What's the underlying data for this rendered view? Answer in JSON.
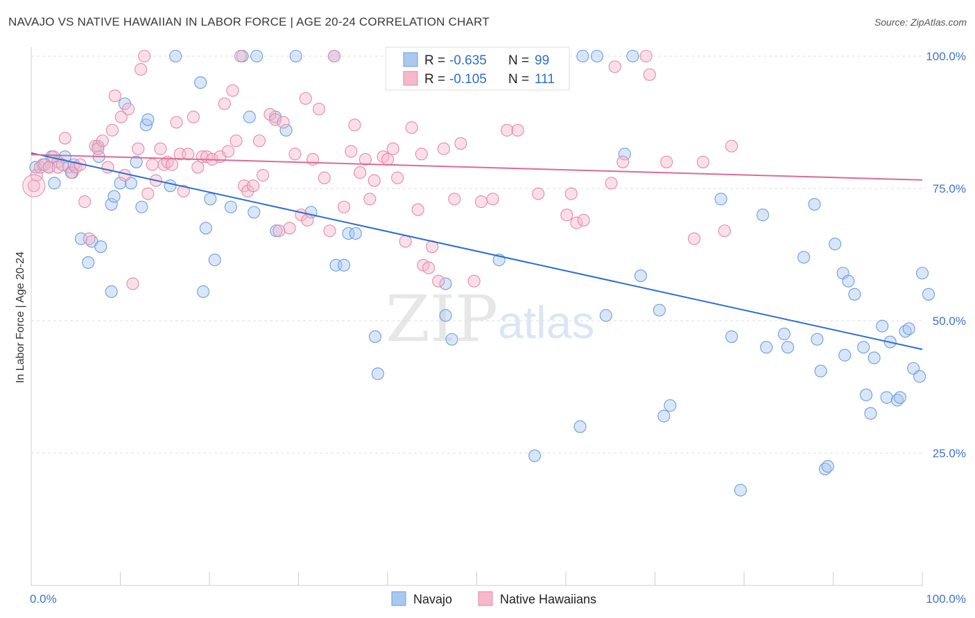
{
  "header": {
    "title": "NAVAJO VS NATIVE HAWAIIAN IN LABOR FORCE | AGE 20-24 CORRELATION CHART",
    "source": "Source: ZipAtlas.com"
  },
  "watermark": {
    "zip": "ZIP",
    "atlas": "atlas"
  },
  "legend": {
    "r_label": "R =",
    "n_label": "N =",
    "rows": [
      {
        "r": "-0.635",
        "n": "99",
        "color": "#a9c8f0"
      },
      {
        "r": "-0.105",
        "n": "111",
        "color": "#f6b8cb"
      }
    ]
  },
  "chart_data": {
    "type": "scatter",
    "title": "NAVAJO VS NATIVE HAWAIIAN IN LABOR FORCE | AGE 20-24 CORRELATION CHART",
    "xlabel": "",
    "ylabel": "In Labor Force | Age 20-24",
    "xlim": [
      0,
      100
    ],
    "ylim": [
      0,
      105
    ],
    "x_tick_labels": [
      "0.0%",
      "100.0%"
    ],
    "y_tick_labels": [
      "25.0%",
      "50.0%",
      "75.0%",
      "100.0%"
    ],
    "y_tick_values": [
      25,
      50,
      75,
      100
    ],
    "grid": true,
    "legend_position": "top-center",
    "series": [
      {
        "name": "Navajo",
        "color": "#a9c8f0",
        "stroke": "#6c9ee0",
        "trend": {
          "x": [
            0,
            100
          ],
          "y": [
            81.7,
            44.6
          ],
          "color": "#2a6dd4"
        },
        "points": [
          [
            0.5,
            79
          ],
          [
            1.3,
            79.5
          ],
          [
            2,
            79
          ],
          [
            2.3,
            81
          ],
          [
            2.6,
            76
          ],
          [
            3,
            80
          ],
          [
            3.8,
            81
          ],
          [
            4.2,
            79
          ],
          [
            4.6,
            78
          ],
          [
            4.8,
            79.5
          ],
          [
            5.6,
            65.5
          ],
          [
            6.4,
            61
          ],
          [
            6.8,
            65
          ],
          [
            7.5,
            83
          ],
          [
            7.6,
            81
          ],
          [
            7.8,
            64
          ],
          [
            9,
            55.5
          ],
          [
            9,
            72
          ],
          [
            9.3,
            73.5
          ],
          [
            10,
            76
          ],
          [
            10.5,
            91
          ],
          [
            11.2,
            76
          ],
          [
            11.8,
            80
          ],
          [
            12.4,
            71.5
          ],
          [
            12.9,
            87
          ],
          [
            13.1,
            88
          ],
          [
            15.6,
            75.5
          ],
          [
            16.2,
            100
          ],
          [
            19,
            95
          ],
          [
            19.3,
            55.5
          ],
          [
            19.6,
            67.5
          ],
          [
            20.1,
            73
          ],
          [
            20.6,
            61.5
          ],
          [
            22.4,
            71.5
          ],
          [
            23.7,
            100
          ],
          [
            24.5,
            88.5
          ],
          [
            25,
            70.5
          ],
          [
            25.3,
            100
          ],
          [
            27.4,
            88.5
          ],
          [
            27.5,
            67
          ],
          [
            28.6,
            86
          ],
          [
            29.7,
            100
          ],
          [
            31.4,
            70.5
          ],
          [
            34,
            100
          ],
          [
            34.2,
            60.5
          ],
          [
            35.1,
            60.5
          ],
          [
            35.6,
            66.5
          ],
          [
            36.4,
            66.5
          ],
          [
            38.6,
            47
          ],
          [
            38.9,
            40
          ],
          [
            46.5,
            57
          ],
          [
            46.5,
            51
          ],
          [
            47.2,
            46.5
          ],
          [
            52.5,
            61.5
          ],
          [
            53,
            100
          ],
          [
            56.5,
            24.5
          ],
          [
            57.3,
            100
          ],
          [
            61.6,
            30
          ],
          [
            61.9,
            100
          ],
          [
            63.5,
            100
          ],
          [
            64.5,
            51
          ],
          [
            66.6,
            81.5
          ],
          [
            67.5,
            100
          ],
          [
            68.4,
            58.5
          ],
          [
            70.5,
            52
          ],
          [
            71,
            32
          ],
          [
            71.7,
            34
          ],
          [
            77.4,
            73
          ],
          [
            78.6,
            47
          ],
          [
            79.6,
            18
          ],
          [
            82.1,
            70
          ],
          [
            82.5,
            45
          ],
          [
            84.5,
            47.5
          ],
          [
            84.9,
            45
          ],
          [
            86.7,
            62
          ],
          [
            87.9,
            72
          ],
          [
            88.2,
            46.5
          ],
          [
            88.6,
            40.5
          ],
          [
            89.1,
            22
          ],
          [
            89.4,
            22.5
          ],
          [
            90.2,
            64.5
          ],
          [
            91.1,
            59
          ],
          [
            91.3,
            43.5
          ],
          [
            91.7,
            57.5
          ],
          [
            92.4,
            55
          ],
          [
            93.4,
            45
          ],
          [
            93.7,
            36
          ],
          [
            94.2,
            32.5
          ],
          [
            94.6,
            43
          ],
          [
            95.5,
            49
          ],
          [
            96,
            35.5
          ],
          [
            96.4,
            46
          ],
          [
            97.2,
            35
          ],
          [
            97.5,
            35.5
          ],
          [
            98.1,
            48
          ],
          [
            98.5,
            48.5
          ],
          [
            99,
            41
          ],
          [
            99.7,
            39.5
          ],
          [
            100,
            59
          ],
          [
            100.7,
            55
          ]
        ]
      },
      {
        "name": "Native Hawaiians",
        "color": "#f6b8cb",
        "stroke": "#e48aa7",
        "trend": {
          "x": [
            0,
            100
          ],
          "y": [
            81.4,
            76.6
          ],
          "color": "#e0698f"
        },
        "points": [
          [
            0.3,
            75.5
          ],
          [
            0.6,
            77.5
          ],
          [
            1,
            79
          ],
          [
            1.5,
            79.5
          ],
          [
            2,
            79
          ],
          [
            2.5,
            81
          ],
          [
            3,
            79
          ],
          [
            3.5,
            79.5
          ],
          [
            3.8,
            84.5
          ],
          [
            4.5,
            78
          ],
          [
            5,
            79
          ],
          [
            5.5,
            79.5
          ],
          [
            6,
            72.5
          ],
          [
            6.5,
            65.5
          ],
          [
            7.2,
            83
          ],
          [
            7.5,
            82.5
          ],
          [
            8,
            84
          ],
          [
            8.6,
            79
          ],
          [
            9.1,
            86
          ],
          [
            9.4,
            92.5
          ],
          [
            10.1,
            88.5
          ],
          [
            10.5,
            77.5
          ],
          [
            10.9,
            90
          ],
          [
            11.4,
            57
          ],
          [
            12,
            82.5
          ],
          [
            12.3,
            97.5
          ],
          [
            12.7,
            100
          ],
          [
            13.1,
            74
          ],
          [
            13.6,
            79.5
          ],
          [
            14,
            76.5
          ],
          [
            14.5,
            82.5
          ],
          [
            14.9,
            79.5
          ],
          [
            15.3,
            80
          ],
          [
            15.8,
            79.5
          ],
          [
            16.3,
            87.5
          ],
          [
            16.7,
            81.5
          ],
          [
            17.1,
            74.5
          ],
          [
            17.6,
            81.5
          ],
          [
            18.2,
            88.5
          ],
          [
            18.7,
            79
          ],
          [
            19.2,
            81
          ],
          [
            19.7,
            81
          ],
          [
            20.3,
            80.5
          ],
          [
            21.2,
            81
          ],
          [
            21.7,
            91
          ],
          [
            22.1,
            82
          ],
          [
            22.6,
            93.5
          ],
          [
            23,
            84
          ],
          [
            23.5,
            100
          ],
          [
            23.9,
            75.5
          ],
          [
            24.3,
            74.5
          ],
          [
            24.9,
            75.5
          ],
          [
            25.6,
            84
          ],
          [
            26,
            77.5
          ],
          [
            26.8,
            89
          ],
          [
            27.4,
            88
          ],
          [
            27.8,
            67
          ],
          [
            28.3,
            87.5
          ],
          [
            29,
            67.5
          ],
          [
            29.6,
            81.5
          ],
          [
            30.3,
            70
          ],
          [
            30.8,
            92
          ],
          [
            31,
            69
          ],
          [
            31.6,
            80.5
          ],
          [
            32.3,
            90
          ],
          [
            32.9,
            77
          ],
          [
            33.5,
            67
          ],
          [
            34,
            100
          ],
          [
            35.1,
            71.5
          ],
          [
            35.9,
            82
          ],
          [
            36.3,
            87
          ],
          [
            36.9,
            78
          ],
          [
            37.5,
            80.5
          ],
          [
            38,
            73
          ],
          [
            38.5,
            76.5
          ],
          [
            39.5,
            81
          ],
          [
            40,
            80.5
          ],
          [
            40.6,
            82.5
          ],
          [
            41.1,
            77
          ],
          [
            42,
            65
          ],
          [
            42.7,
            86.5
          ],
          [
            43.4,
            71
          ],
          [
            43.8,
            81.5
          ],
          [
            44,
            60.5
          ],
          [
            44.6,
            60
          ],
          [
            45,
            64
          ],
          [
            45.7,
            57.5
          ],
          [
            46.3,
            82.5
          ],
          [
            47.5,
            73
          ],
          [
            48.2,
            83.5
          ],
          [
            49.7,
            57.5
          ],
          [
            50.5,
            72.5
          ],
          [
            51.8,
            73
          ],
          [
            53.4,
            86
          ],
          [
            54.6,
            86
          ],
          [
            56.9,
            74
          ],
          [
            60.1,
            70
          ],
          [
            60.6,
            74
          ],
          [
            61.2,
            68.5
          ],
          [
            62,
            69
          ],
          [
            65.1,
            76
          ],
          [
            65.5,
            98
          ],
          [
            66.4,
            80
          ],
          [
            69,
            100
          ],
          [
            69.4,
            96.5
          ],
          [
            71.3,
            80
          ],
          [
            74.4,
            65.5
          ],
          [
            75.4,
            80
          ],
          [
            77.8,
            67
          ],
          [
            78.6,
            83
          ]
        ]
      }
    ]
  },
  "bottom_legend": [
    {
      "label": "Navajo",
      "color": "#a9c8f0",
      "stroke": "#6c9ee0"
    },
    {
      "label": "Native Hawaiians",
      "color": "#f6b8cb",
      "stroke": "#e48aa7"
    }
  ]
}
